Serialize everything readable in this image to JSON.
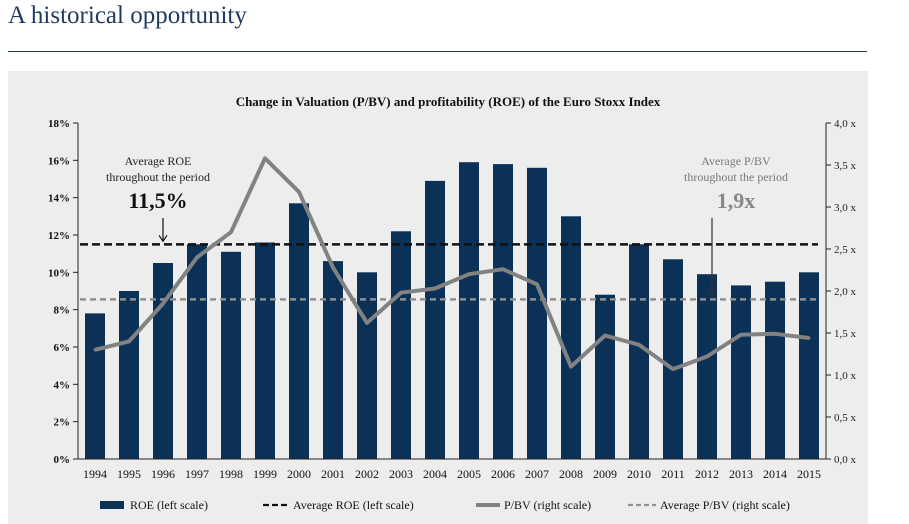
{
  "header": {
    "title": "A historical opportunity"
  },
  "chart_data": {
    "type": "bar",
    "title": "Change in Valuation (P/BV) and profitability (ROE) of the Euro Stoxx Index",
    "categories": [
      "1994",
      "1995",
      "1996",
      "1997",
      "1998",
      "1999",
      "2000",
      "2001",
      "2002",
      "2003",
      "2004",
      "2005",
      "2006",
      "2007",
      "2008",
      "2009",
      "2010",
      "2011",
      "2012",
      "2013",
      "2014",
      "2015"
    ],
    "left_axis": {
      "min": 0,
      "max": 18,
      "step": 2,
      "tick_labels": [
        "0%",
        "2%",
        "4%",
        "6%",
        "8%",
        "10%",
        "12%",
        "14%",
        "16%",
        "18%"
      ]
    },
    "right_axis": {
      "min": 0,
      "max": 4,
      "step": 0.5,
      "tick_labels": [
        "0,0 x",
        "0,5 x",
        "1,0 x",
        "1,5 x",
        "2,0 x",
        "2,5 x",
        "3,0 x",
        "3,5 x",
        "4,0 x"
      ]
    },
    "series": [
      {
        "name": "ROE (left scale)",
        "type": "bar",
        "axis": "left",
        "color": "#0b3157",
        "values": [
          7.8,
          9.0,
          10.5,
          11.5,
          11.1,
          11.6,
          13.7,
          10.6,
          10.0,
          12.2,
          14.9,
          15.9,
          15.8,
          15.6,
          13.0,
          8.8,
          11.5,
          10.7,
          9.9,
          9.3,
          9.5,
          10.0
        ]
      },
      {
        "name": "Average ROE (left scale)",
        "type": "hline",
        "axis": "left",
        "color": "#111111",
        "value": 11.5
      },
      {
        "name": "P/BV (right scale)",
        "type": "line",
        "axis": "right",
        "color": "#828282",
        "values": [
          1.3,
          1.4,
          1.85,
          2.4,
          2.7,
          3.58,
          3.18,
          2.28,
          1.62,
          1.98,
          2.03,
          2.2,
          2.26,
          2.08,
          1.1,
          1.47,
          1.36,
          1.07,
          1.22,
          1.48,
          1.49,
          1.44
        ]
      },
      {
        "name": "Average P/BV (right scale)",
        "type": "hline",
        "axis": "right",
        "color": "#909090",
        "value": 1.9
      }
    ],
    "annotations": [
      {
        "id": "avg-roe",
        "line1": "Average ROE",
        "line2": "throughout the period",
        "value": "11,5%"
      },
      {
        "id": "avg-pbv",
        "line1": "Average P/BV",
        "line2": "throughout the period",
        "value": "1,9x"
      }
    ],
    "legend_position": "bottom"
  }
}
